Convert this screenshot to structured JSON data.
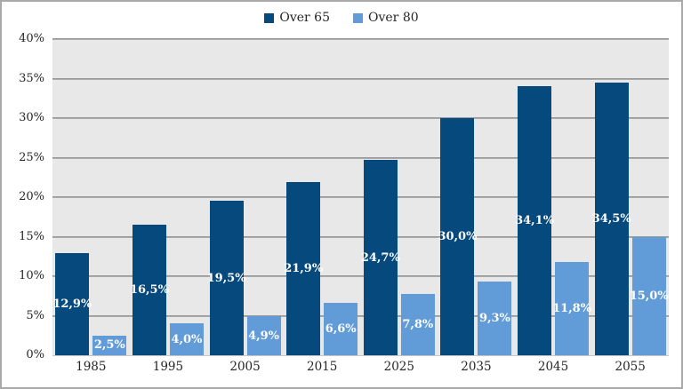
{
  "frame": {
    "border_color": "#a9a9a9",
    "background": "#ffffff"
  },
  "legend": {
    "items": [
      {
        "label": "Over 65",
        "color": "#05497d"
      },
      {
        "label": "Over 80",
        "color": "#619cd8"
      }
    ],
    "position": "top-center"
  },
  "chart_data": {
    "type": "bar",
    "title": "",
    "xlabel": "",
    "ylabel": "",
    "categories": [
      "1985",
      "1995",
      "2005",
      "2015",
      "2025",
      "2035",
      "2045",
      "2055"
    ],
    "series": [
      {
        "name": "Over 65",
        "color": "#05497d",
        "values": [
          12.9,
          16.5,
          19.5,
          21.9,
          24.7,
          30.0,
          34.1,
          34.5
        ],
        "data_labels": [
          "12,9%",
          "16,5%",
          "19,5%",
          "21,9%",
          "24,7%",
          "30,0%",
          "34,1%",
          "34,5%"
        ]
      },
      {
        "name": "Over 80",
        "color": "#619cd8",
        "values": [
          2.5,
          4.0,
          4.9,
          6.6,
          7.8,
          9.3,
          11.8,
          15.0
        ],
        "data_labels": [
          "2,5%",
          "4,0%",
          "4,9%",
          "6,6%",
          "7,8%",
          "9,3%",
          "11,8%",
          "15,0%"
        ]
      }
    ],
    "ylim": [
      0,
      40
    ],
    "ytick_step": 5,
    "ytick_labels": [
      "0%",
      "5%",
      "10%",
      "15%",
      "20%",
      "25%",
      "30%",
      "35%",
      "40%"
    ],
    "grid": true,
    "gridline_color": "#8e8e8e",
    "plot_background": "#e8e8e8",
    "data_label_color": "#ffffff",
    "legend_position": "top"
  }
}
